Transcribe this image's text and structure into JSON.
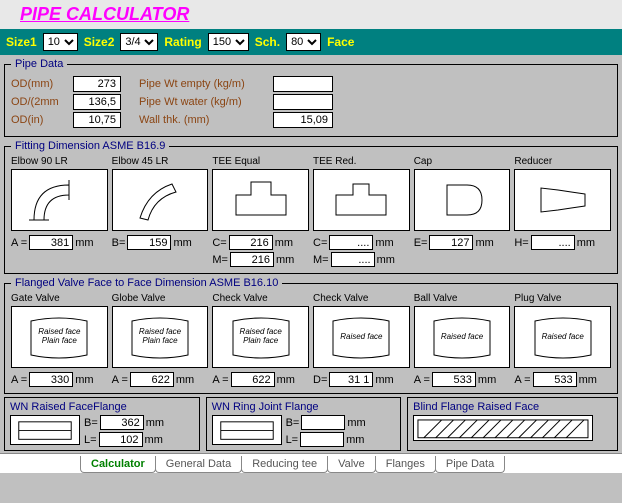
{
  "title": "PIPE CALCULATOR",
  "params": {
    "size1": {
      "label": "Size1",
      "value": "10"
    },
    "size2": {
      "label": "Size2",
      "value": "3/4"
    },
    "rating": {
      "label": "Rating",
      "value": "150"
    },
    "sch": {
      "label": "Sch.",
      "value": "80"
    },
    "face": {
      "label": "Face"
    }
  },
  "colors": {
    "teal": "#008080",
    "yellow": "#ffff00",
    "magenta": "#ff00ff",
    "brown": "#8b4513",
    "navy": "#000080",
    "bg": "#c0c0c0"
  },
  "pipe_data": {
    "legend": "Pipe Data",
    "rows": [
      {
        "l1": "OD(mm)",
        "v1": "273",
        "l2": "Pipe Wt empty (kg/m)",
        "v2": ""
      },
      {
        "l1": "OD/(2mm",
        "v1": "136,5",
        "l2": "Pipe Wt water (kg/m)",
        "v2": ""
      },
      {
        "l1": "OD(in)",
        "v1": "10,75",
        "l2": "Wall thk. (mm)",
        "v2": "15,09"
      }
    ]
  },
  "fittings": {
    "legend": "Fitting Dimension ASME B16.9",
    "items": [
      {
        "name": "Elbow 90 LR",
        "dims": [
          {
            "l": "A =",
            "v": "381",
            "u": "mm"
          }
        ]
      },
      {
        "name": "Elbow 45 LR",
        "dims": [
          {
            "l": "B=",
            "v": "159",
            "u": "mm"
          }
        ]
      },
      {
        "name": "TEE Equal",
        "dims": [
          {
            "l": "C=",
            "v": "216",
            "u": "mm"
          },
          {
            "l": "M=",
            "v": "216",
            "u": "mm"
          }
        ]
      },
      {
        "name": "TEE Red.",
        "dims": [
          {
            "l": "C=",
            "v": "....",
            "u": "mm"
          },
          {
            "l": "M=",
            "v": "....",
            "u": "mm"
          }
        ]
      },
      {
        "name": "Cap",
        "dims": [
          {
            "l": "E=",
            "v": "127",
            "u": "mm"
          }
        ]
      },
      {
        "name": "Reducer",
        "dims": [
          {
            "l": "H=",
            "v": "....",
            "u": "mm"
          }
        ]
      }
    ]
  },
  "valves": {
    "legend": "Flanged Valve Face to Face Dimension ASME B16.10",
    "items": [
      {
        "name": "Gate Valve",
        "txt": "Raised face\nPlain face",
        "dims": [
          {
            "l": "A =",
            "v": "330",
            "u": "mm"
          }
        ]
      },
      {
        "name": "Globe Valve",
        "txt": "Raised face\nPlain face",
        "dims": [
          {
            "l": "A =",
            "v": "622",
            "u": "mm"
          }
        ]
      },
      {
        "name": "Check Valve",
        "txt": "Raised face\nPlain face",
        "dims": [
          {
            "l": "A =",
            "v": "622",
            "u": "mm"
          }
        ]
      },
      {
        "name": "Check Valve",
        "txt": "Raised face",
        "dims": [
          {
            "l": "D=",
            "v": "31 1",
            "u": "mm"
          }
        ]
      },
      {
        "name": "Ball Valve",
        "txt": "Raised face",
        "dims": [
          {
            "l": "A =",
            "v": "533",
            "u": "mm"
          }
        ]
      },
      {
        "name": "Plug  Valve",
        "txt": "Raised face",
        "dims": [
          {
            "l": "A =",
            "v": "533",
            "u": "mm"
          }
        ]
      }
    ]
  },
  "flanges": {
    "wn_raised": {
      "title": "WN Raised FaceFlange",
      "rows": [
        {
          "l": "B=",
          "v": "362",
          "u": "mm"
        },
        {
          "l": "L=",
          "v": "102",
          "u": "mm"
        }
      ]
    },
    "wn_ring": {
      "title": "WN Ring Joint Flange",
      "rows": [
        {
          "l": "B=",
          "v": "",
          "u": "mm"
        },
        {
          "l": "L=",
          "v": "",
          "u": "mm"
        }
      ]
    },
    "blind": {
      "title": "Blind Flange Raised Face"
    }
  },
  "tabs": [
    "Calculator",
    "General Data",
    "Reducing tee",
    "Valve",
    "Flanges",
    "Pipe Data"
  ],
  "active_tab": 0
}
